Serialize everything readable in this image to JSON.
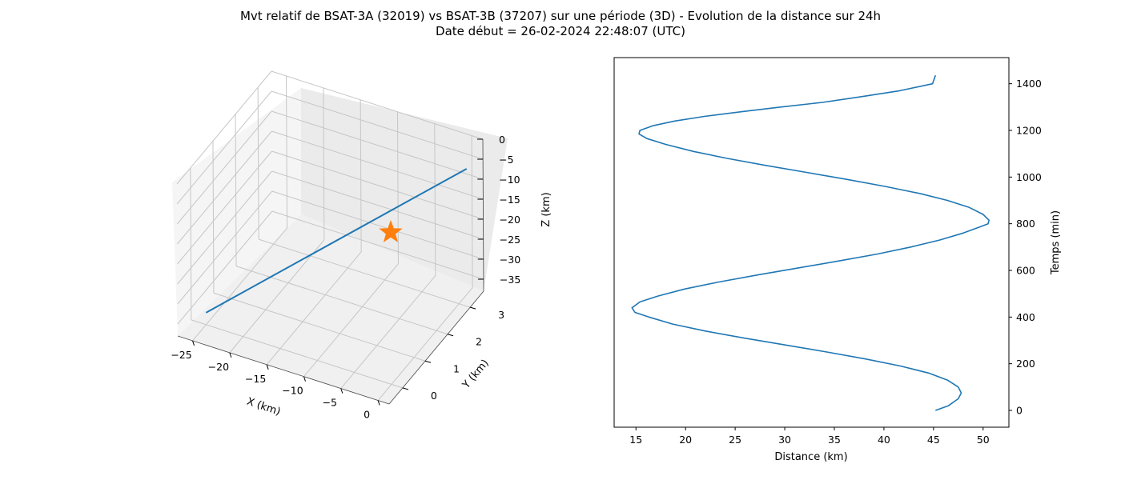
{
  "figure": {
    "title_line1": "Mvt relatif de BSAT-3A (32019) vs BSAT-3B (37207) sur une période (3D) - Evolution de la distance sur 24h",
    "title_line2": "Date début = 26-02-2024 22:48:07 (UTC)"
  },
  "colors": {
    "series": "#1f77b4",
    "marker": "#ff7f0e",
    "grid": "#b0b0b0",
    "pane": "#f2f2f2"
  },
  "chart_data": [
    {
      "type": "line3d",
      "xlabel": "X (km)",
      "ylabel": "Y (km)",
      "zlabel": "Z (km)",
      "xlim": [
        -27,
        1.5
      ],
      "ylim": [
        -0.6,
        3.6
      ],
      "zlim": [
        -38,
        0
      ],
      "xticks": [
        -25,
        -20,
        -15,
        -10,
        -5,
        0
      ],
      "yticks": [
        0,
        1,
        2,
        3
      ],
      "zticks": [
        0,
        -5,
        -10,
        -15,
        -20,
        -25,
        -30,
        -35
      ],
      "grid": true,
      "series": [
        {
          "x": [
            -25,
            -0.1
          ],
          "y": [
            0,
            3.4
          ],
          "z": [
            -35,
            -7
          ]
        }
      ],
      "markers": [
        {
          "symbol": "star",
          "x": 0,
          "y": 0,
          "z": 0
        }
      ]
    },
    {
      "type": "line",
      "xlabel": "Distance (km)",
      "ylabel": "Temps (min)",
      "xlim": [
        12.8,
        52.6
      ],
      "ylim": [
        -72,
        1512
      ],
      "xticks": [
        15,
        20,
        25,
        30,
        35,
        40,
        45,
        50
      ],
      "yticks": [
        0,
        200,
        400,
        600,
        800,
        1000,
        1200,
        1400
      ],
      "ytick_side": "right",
      "grid": false,
      "series": [
        {
          "distance": [
            45.2,
            46.5,
            47.5,
            47.8,
            47.5,
            46.4,
            44.5,
            41.7,
            38.2,
            34.3,
            30.1,
            25.9,
            22.0,
            18.7,
            16.3,
            14.9,
            14.6,
            15.4,
            17.2,
            19.9,
            23.3,
            27.2,
            31.3,
            35.4,
            39.3,
            42.7,
            45.6,
            48.0,
            49.6,
            50.5,
            50.6,
            50.0,
            48.6,
            46.4,
            43.6,
            40.1,
            36.3,
            32.2,
            28.1,
            24.2,
            20.8,
            18.0,
            16.1,
            15.3,
            15.4,
            16.7,
            18.9,
            21.9,
            25.6,
            29.6,
            33.8,
            37.8,
            41.6,
            44.9,
            45.2
          ],
          "time": [
            0,
            20,
            50,
            75,
            100,
            130,
            160,
            190,
            220,
            250,
            280,
            310,
            340,
            370,
            400,
            420,
            440,
            465,
            490,
            520,
            550,
            580,
            610,
            640,
            670,
            700,
            730,
            760,
            785,
            800,
            815,
            840,
            870,
            900,
            930,
            960,
            990,
            1020,
            1050,
            1080,
            1110,
            1140,
            1165,
            1185,
            1200,
            1220,
            1240,
            1260,
            1280,
            1300,
            1320,
            1345,
            1370,
            1400,
            1436
          ]
        }
      ]
    }
  ]
}
